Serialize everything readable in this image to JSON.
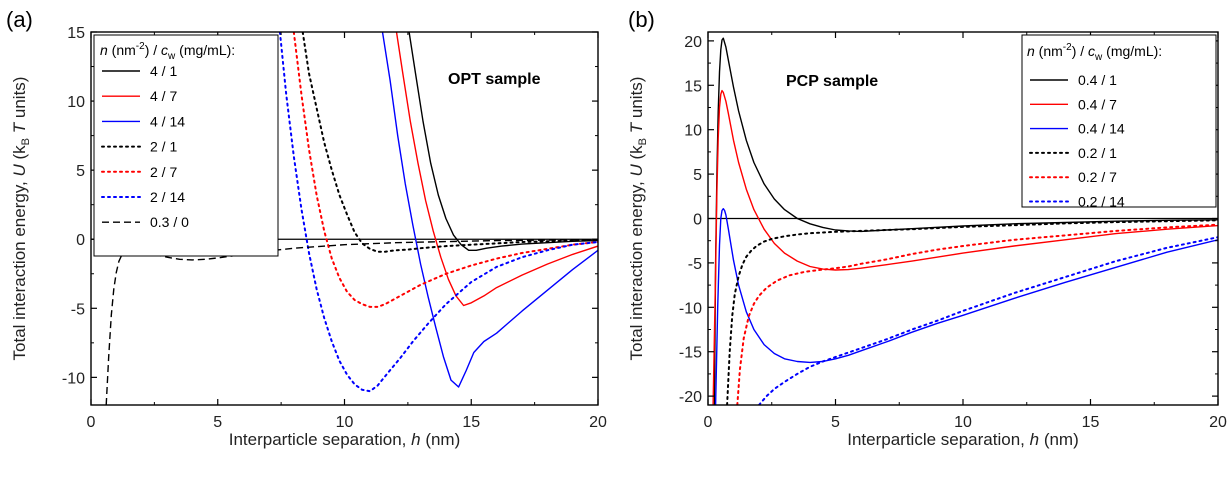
{
  "chart_data": [
    {
      "type": "line",
      "panel_label": "(a)",
      "annotation": "OPT sample",
      "xlabel": {
        "main": "Interparticle separation, ",
        "var": "h",
        "unit": " (nm)"
      },
      "ylabel": {
        "main": "Total interaction energy, ",
        "var": "U",
        "mid": " (k",
        "sub": "B",
        "var2": "T",
        "end": " units)"
      },
      "xlim": [
        0,
        20
      ],
      "ylim": [
        -12,
        15
      ],
      "xticks": [
        0,
        5,
        10,
        15,
        20
      ],
      "yticks": [
        -10,
        -5,
        0,
        5,
        10,
        15
      ],
      "zero_line": true,
      "grid": false,
      "legend": {
        "position": "top-left",
        "title_parts": {
          "var1": "n",
          "p1": " (nm",
          "sup": "-2",
          "p2": ") / ",
          "var2": "c",
          "sub": "w",
          "p3": " (mg/mL):"
        }
      },
      "series": [
        {
          "name": "4 / 1",
          "color": "#000000",
          "dash": "solid",
          "x": [
            12.55,
            12.8,
            13.1,
            13.4,
            13.7,
            14.0,
            14.3,
            14.6,
            14.9,
            15.2,
            15.6,
            16.2,
            17.0,
            18.0,
            19.0,
            20.0
          ],
          "y": [
            15,
            12,
            8.5,
            5.5,
            3.2,
            1.5,
            0.3,
            -0.4,
            -0.8,
            -0.8,
            -0.65,
            -0.5,
            -0.35,
            -0.25,
            -0.15,
            -0.1
          ]
        },
        {
          "name": "4 / 7",
          "color": "#ff0000",
          "dash": "solid",
          "x": [
            12.05,
            12.3,
            12.6,
            12.9,
            13.2,
            13.5,
            13.8,
            14.1,
            14.4,
            14.7,
            15.0,
            15.5,
            16.0,
            17.0,
            18.0,
            19.0,
            20.0
          ],
          "y": [
            15,
            12,
            8.5,
            5.5,
            2.8,
            0.6,
            -1.3,
            -2.9,
            -4.1,
            -4.8,
            -4.6,
            -4.1,
            -3.5,
            -2.6,
            -1.8,
            -1.1,
            -0.5
          ]
        },
        {
          "name": "4 / 14",
          "color": "#0000ff",
          "dash": "solid",
          "x": [
            11.5,
            11.8,
            12.1,
            12.4,
            12.7,
            13.0,
            13.3,
            13.6,
            13.9,
            14.2,
            14.5,
            14.8,
            15.1,
            15.5,
            16.0,
            16.5,
            17.0,
            18.0,
            19.0,
            20.0
          ],
          "y": [
            15,
            11.5,
            7.5,
            4.0,
            1.0,
            -1.8,
            -4.2,
            -6.4,
            -8.5,
            -10.2,
            -10.7,
            -9.5,
            -8.2,
            -7.4,
            -6.8,
            -6.0,
            -5.2,
            -3.7,
            -2.2,
            -0.8
          ]
        },
        {
          "name": "2 / 1",
          "color": "#000000",
          "dash": "dot",
          "x": [
            8.35,
            8.6,
            8.9,
            9.2,
            9.5,
            9.8,
            10.1,
            10.4,
            10.7,
            11.0,
            11.3,
            11.6,
            12.0,
            12.5,
            13.0,
            14.0,
            15.0,
            16.0,
            17.0,
            18.0,
            19.0,
            20.0
          ],
          "y": [
            15,
            12,
            9.5,
            7.0,
            5.0,
            3.2,
            1.8,
            0.5,
            -0.3,
            -0.7,
            -0.9,
            -0.9,
            -0.8,
            -0.75,
            -0.65,
            -0.5,
            -0.4,
            -0.3,
            -0.2,
            -0.15,
            -0.1,
            -0.05
          ]
        },
        {
          "name": "2 / 7",
          "color": "#ff0000",
          "dash": "dot",
          "x": [
            8.0,
            8.3,
            8.6,
            8.9,
            9.2,
            9.5,
            9.8,
            10.1,
            10.4,
            10.7,
            11.0,
            11.3,
            11.6,
            12.0,
            12.5,
            13.0,
            14.0,
            15.0,
            16.0,
            17.0,
            18.0,
            19.0,
            20.0
          ],
          "y": [
            15,
            10.5,
            6.5,
            3.2,
            0.6,
            -1.4,
            -2.8,
            -3.8,
            -4.4,
            -4.7,
            -4.9,
            -4.9,
            -4.7,
            -4.3,
            -3.8,
            -3.3,
            -2.5,
            -1.9,
            -1.4,
            -1.0,
            -0.7,
            -0.4,
            -0.2
          ]
        },
        {
          "name": "2 / 14",
          "color": "#0000ff",
          "dash": "dot",
          "x": [
            7.45,
            7.7,
            8.0,
            8.3,
            8.6,
            8.9,
            9.2,
            9.5,
            9.8,
            10.1,
            10.4,
            10.7,
            11.0,
            11.3,
            11.7,
            12.2,
            12.7,
            13.3,
            14.0,
            15.0,
            16.0,
            17.0,
            18.0,
            19.0,
            20.0
          ],
          "y": [
            15,
            10.5,
            6.0,
            2.2,
            -1.0,
            -3.6,
            -5.7,
            -7.4,
            -8.8,
            -9.8,
            -10.5,
            -10.9,
            -11.0,
            -10.6,
            -9.7,
            -8.6,
            -7.4,
            -6.1,
            -4.7,
            -3.1,
            -2.0,
            -1.3,
            -0.8,
            -0.4,
            -0.2
          ]
        },
        {
          "name": "0.3 / 0",
          "color": "#000000",
          "dash": "dash",
          "x": [
            0.6,
            0.7,
            0.8,
            0.9,
            1.0,
            1.1,
            1.25,
            1.45,
            1.7,
            2.0,
            2.5,
            3.0,
            3.5,
            4.0,
            4.5,
            5.0,
            6.0,
            7.0,
            8.0,
            10.0,
            12.0,
            14.0,
            16.0,
            18.0,
            20.0
          ],
          "y": [
            -12,
            -8.5,
            -5.5,
            -3.6,
            -2.4,
            -1.6,
            -1.0,
            -0.75,
            -0.7,
            -0.85,
            -1.1,
            -1.3,
            -1.45,
            -1.5,
            -1.45,
            -1.35,
            -1.1,
            -0.85,
            -0.65,
            -0.4,
            -0.25,
            -0.17,
            -0.1,
            -0.06,
            -0.03
          ]
        }
      ]
    },
    {
      "type": "line",
      "panel_label": "(b)",
      "annotation": "PCP sample",
      "xlabel": {
        "main": "Interparticle separation, ",
        "var": "h",
        "unit": " (nm)"
      },
      "ylabel": {
        "main": "Total interaction energy, ",
        "var": "U",
        "mid": " (k",
        "sub": "B",
        "var2": "T",
        "end": " units)"
      },
      "xlim": [
        0,
        20
      ],
      "ylim": [
        -21,
        21
      ],
      "xticks": [
        0,
        5,
        10,
        15,
        20
      ],
      "yticks": [
        -20,
        -15,
        -10,
        -5,
        0,
        5,
        10,
        15,
        20
      ],
      "zero_line": true,
      "grid": false,
      "legend": {
        "position": "top-right",
        "title_parts": {
          "var1": "n",
          "p1": " (nm",
          "sup": "-2",
          "p2": ") / ",
          "var2": "c",
          "sub": "w",
          "p3": " (mg/mL):"
        }
      },
      "series": [
        {
          "name": "0.4 / 1",
          "color": "#000000",
          "dash": "solid",
          "x": [
            0.25,
            0.3,
            0.35,
            0.4,
            0.45,
            0.5,
            0.55,
            0.6,
            0.7,
            0.8,
            1.0,
            1.2,
            1.5,
            1.8,
            2.2,
            2.6,
            3.0,
            3.5,
            4.0,
            4.5,
            5.0,
            5.5,
            6.0,
            7.0,
            8.0,
            10.0,
            12.0,
            14.0,
            16.0,
            18.0,
            20.0
          ],
          "y": [
            -21,
            -5,
            5,
            12,
            16.5,
            19.0,
            20.1,
            20.3,
            19.3,
            17.8,
            14.8,
            12.1,
            8.8,
            6.3,
            3.9,
            2.2,
            1.0,
            0.0,
            -0.6,
            -1.0,
            -1.3,
            -1.4,
            -1.45,
            -1.3,
            -1.15,
            -0.85,
            -0.6,
            -0.45,
            -0.3,
            -0.2,
            -0.15
          ]
        },
        {
          "name": "0.4 / 7",
          "color": "#ff0000",
          "dash": "solid",
          "x": [
            0.2,
            0.3,
            0.35,
            0.4,
            0.45,
            0.5,
            0.55,
            0.6,
            0.7,
            0.8,
            1.0,
            1.2,
            1.5,
            1.8,
            2.2,
            2.6,
            3.0,
            3.5,
            4.0,
            4.5,
            5.0,
            5.5,
            6.0,
            7.0,
            8.0,
            10.0,
            12.0,
            14.0,
            16.0,
            18.0,
            20.0
          ],
          "y": [
            -21,
            -6,
            3,
            9,
            12.5,
            14.0,
            14.4,
            14.2,
            13.2,
            11.8,
            8.8,
            6.3,
            3.3,
            1.0,
            -1.2,
            -2.8,
            -3.9,
            -4.8,
            -5.4,
            -5.7,
            -5.8,
            -5.75,
            -5.6,
            -5.2,
            -4.8,
            -3.9,
            -3.1,
            -2.4,
            -1.7,
            -1.2,
            -0.8
          ]
        },
        {
          "name": "0.4 / 14",
          "color": "#0000ff",
          "dash": "solid",
          "x": [
            0.3,
            0.38,
            0.45,
            0.5,
            0.55,
            0.6,
            0.65,
            0.7,
            0.8,
            0.9,
            1.0,
            1.2,
            1.5,
            1.8,
            2.2,
            2.6,
            3.0,
            3.5,
            4.0,
            4.5,
            5.0,
            5.5,
            6.0,
            7.0,
            8.0,
            9.0,
            10.0,
            12.0,
            14.0,
            16.0,
            18.0,
            20.0
          ],
          "y": [
            -21,
            -10,
            -3,
            0,
            0.9,
            1.1,
            0.9,
            0.4,
            -1.2,
            -3.0,
            -4.7,
            -7.5,
            -10.5,
            -12.5,
            -14.2,
            -15.2,
            -15.8,
            -16.1,
            -16.2,
            -16.1,
            -15.8,
            -15.4,
            -14.9,
            -13.9,
            -12.8,
            -11.8,
            -10.9,
            -9.0,
            -7.2,
            -5.5,
            -3.8,
            -2.4
          ]
        },
        {
          "name": "0.2 / 1",
          "color": "#000000",
          "dash": "dot",
          "x": [
            0.75,
            0.85,
            0.95,
            1.05,
            1.2,
            1.35,
            1.5,
            1.7,
            1.9,
            2.2,
            2.5,
            3.0,
            3.5,
            4.0,
            5.0,
            6.0,
            7.0,
            8.0,
            10.0,
            12.0,
            14.0,
            16.0,
            18.0,
            20.0
          ],
          "y": [
            -21,
            -15,
            -11,
            -8.5,
            -6.5,
            -5.2,
            -4.3,
            -3.6,
            -3.1,
            -2.6,
            -2.3,
            -2.0,
            -1.8,
            -1.65,
            -1.5,
            -1.4,
            -1.3,
            -1.2,
            -0.95,
            -0.75,
            -0.55,
            -0.4,
            -0.3,
            -0.2
          ]
        },
        {
          "name": "0.2 / 7",
          "color": "#ff0000",
          "dash": "dot",
          "x": [
            1.15,
            1.25,
            1.4,
            1.6,
            1.8,
            2.0,
            2.3,
            2.7,
            3.2,
            3.8,
            4.5,
            5.0,
            5.5,
            6.0,
            7.0,
            8.0,
            9.0,
            10.0,
            12.0,
            14.0,
            16.0,
            18.0,
            20.0
          ],
          "y": [
            -21,
            -17,
            -13.5,
            -11.0,
            -9.6,
            -8.7,
            -7.8,
            -7.0,
            -6.4,
            -6.0,
            -5.75,
            -5.6,
            -5.4,
            -5.1,
            -4.6,
            -4.0,
            -3.5,
            -3.1,
            -2.4,
            -1.9,
            -1.4,
            -1.0,
            -0.7
          ]
        },
        {
          "name": "0.2 / 14",
          "color": "#0000ff",
          "dash": "dot",
          "x": [
            2.0,
            2.3,
            2.6,
            3.0,
            3.5,
            4.0,
            4.5,
            5.0,
            6.0,
            7.0,
            8.0,
            9.0,
            10.0,
            12.0,
            14.0,
            16.0,
            18.0,
            20.0
          ],
          "y": [
            -21,
            -20.0,
            -19.2,
            -18.4,
            -17.5,
            -16.7,
            -16.1,
            -15.6,
            -14.6,
            -13.6,
            -12.5,
            -11.5,
            -10.4,
            -8.4,
            -6.6,
            -4.8,
            -3.3,
            -2.1
          ]
        }
      ]
    }
  ]
}
